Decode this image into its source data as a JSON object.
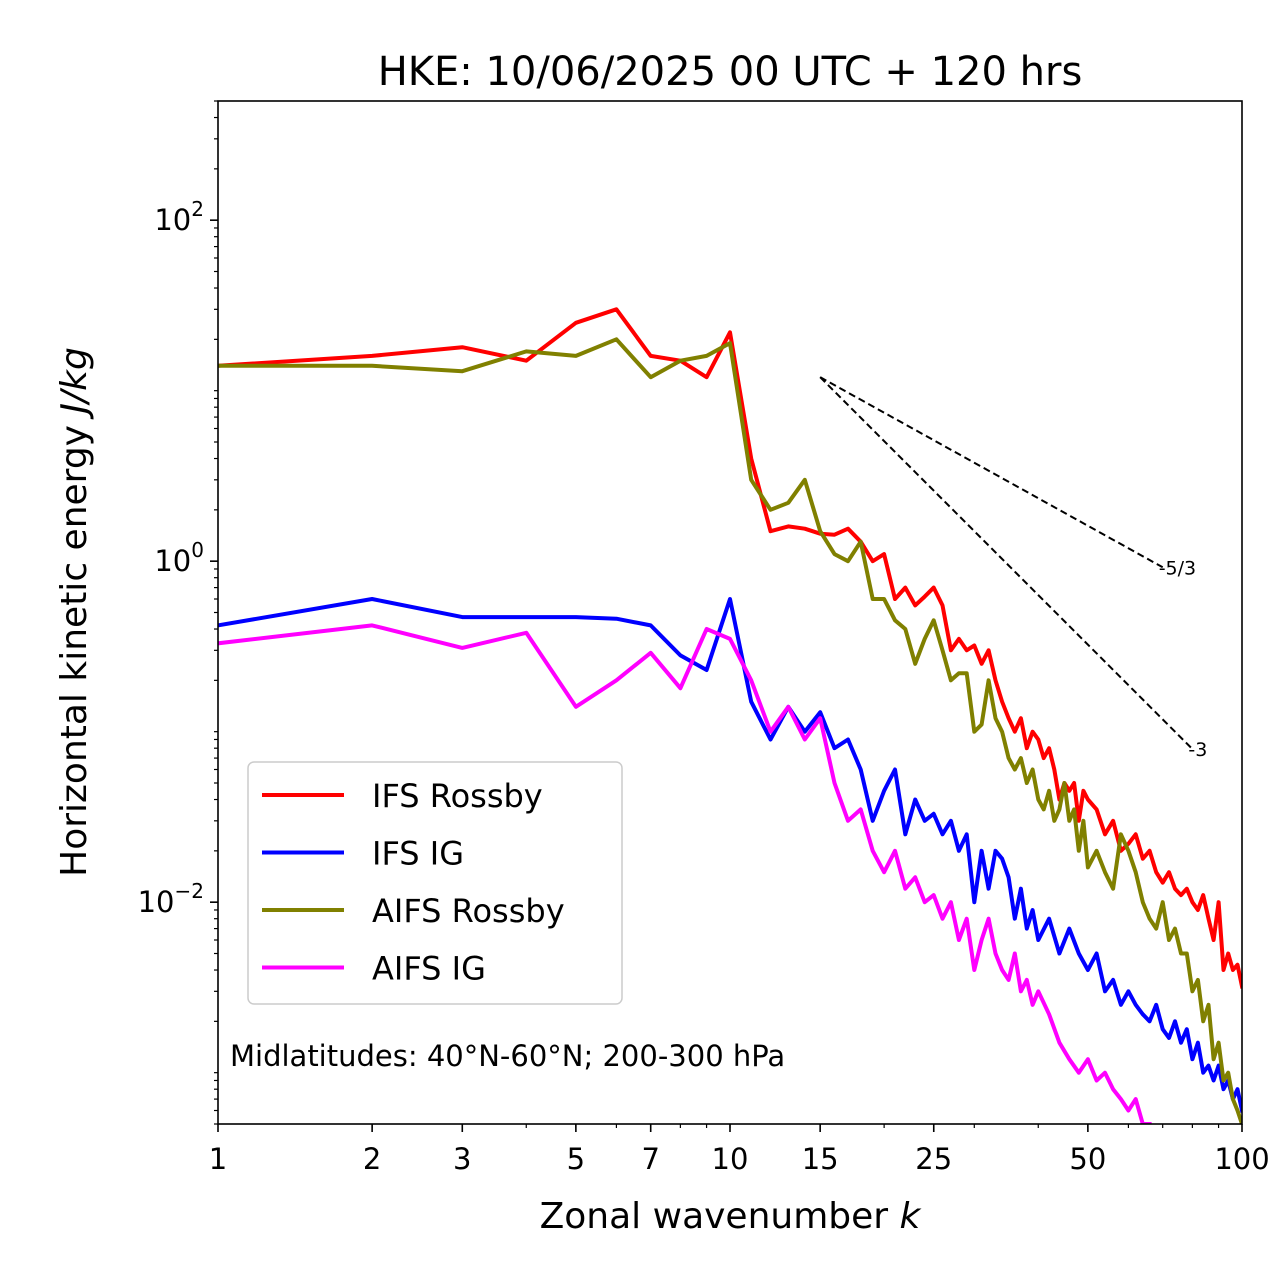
{
  "chart_data": {
    "type": "line",
    "title": "HKE: 10/06/2025 00 UTC + 120 hrs",
    "xlabel": "Zonal wavenumber ",
    "xlabel_italic": "k",
    "ylabel": "Horizontal kinetic energy ",
    "ylabel_italic": "J/kg",
    "xscale": "log",
    "yscale": "log",
    "xlim": [
      1,
      100
    ],
    "ylim": [
      0.0005,
      500
    ],
    "x_ticks": [
      1,
      2,
      3,
      5,
      7,
      10,
      15,
      25,
      50,
      100
    ],
    "x_tick_labels": [
      "1",
      "2",
      "3",
      "5",
      "7",
      "10",
      "15",
      "25",
      "50",
      "100"
    ],
    "y_ticks": [
      0.01,
      1,
      100
    ],
    "y_tick_labels": [
      {
        "base": "10",
        "exp": "−2"
      },
      {
        "base": "10",
        "exp": "0"
      },
      {
        "base": "10",
        "exp": "2"
      }
    ],
    "annotation": "Midlatitudes: 40°N-60°N; 200-300 hPa",
    "legend_position": "lower-left",
    "reference_lines": [
      {
        "label": "-5/3",
        "slope": -1.6667,
        "x_start": 15,
        "y_start": 12,
        "x_end": 70
      },
      {
        "label": "-3",
        "slope": -3,
        "x_start": 15,
        "y_start": 12,
        "x_end": 80
      }
    ],
    "series": [
      {
        "name": "IFS Rossby",
        "color": "#ff0000",
        "values": [
          [
            1,
            14
          ],
          [
            2,
            16
          ],
          [
            3,
            18
          ],
          [
            4,
            15
          ],
          [
            5,
            25
          ],
          [
            6,
            30
          ],
          [
            7,
            16
          ],
          [
            8,
            15
          ],
          [
            9,
            12
          ],
          [
            10,
            22
          ],
          [
            11,
            4
          ],
          [
            12,
            1.5
          ],
          [
            13,
            1.6
          ],
          [
            14,
            1.55
          ],
          [
            15,
            1.45
          ],
          [
            16,
            1.43
          ],
          [
            17,
            1.55
          ],
          [
            18,
            1.3
          ],
          [
            19,
            1.0
          ],
          [
            20,
            1.1
          ],
          [
            21,
            0.6
          ],
          [
            22,
            0.7
          ],
          [
            23,
            0.55
          ],
          [
            24,
            0.62
          ],
          [
            25,
            0.7
          ],
          [
            26,
            0.55
          ],
          [
            27,
            0.3
          ],
          [
            28,
            0.35
          ],
          [
            29,
            0.3
          ],
          [
            30,
            0.32
          ],
          [
            31,
            0.25
          ],
          [
            32,
            0.3
          ],
          [
            33,
            0.2
          ],
          [
            34,
            0.15
          ],
          [
            35,
            0.12
          ],
          [
            36,
            0.1
          ],
          [
            37,
            0.12
          ],
          [
            38,
            0.08
          ],
          [
            39,
            0.1
          ],
          [
            40,
            0.09
          ],
          [
            41,
            0.07
          ],
          [
            42,
            0.08
          ],
          [
            43,
            0.06
          ],
          [
            44,
            0.04
          ],
          [
            45,
            0.05
          ],
          [
            46,
            0.045
          ],
          [
            47,
            0.05
          ],
          [
            48,
            0.03
          ],
          [
            49,
            0.045
          ],
          [
            50,
            0.04
          ],
          [
            52,
            0.035
          ],
          [
            54,
            0.025
          ],
          [
            56,
            0.03
          ],
          [
            58,
            0.02
          ],
          [
            60,
            0.022
          ],
          [
            62,
            0.025
          ],
          [
            64,
            0.018
          ],
          [
            66,
            0.02
          ],
          [
            68,
            0.015
          ],
          [
            70,
            0.013
          ],
          [
            72,
            0.015
          ],
          [
            74,
            0.012
          ],
          [
            76,
            0.011
          ],
          [
            78,
            0.012
          ],
          [
            80,
            0.01
          ],
          [
            82,
            0.009
          ],
          [
            84,
            0.011
          ],
          [
            86,
            0.008
          ],
          [
            88,
            0.006
          ],
          [
            90,
            0.01
          ],
          [
            92,
            0.004
          ],
          [
            94,
            0.005
          ],
          [
            96,
            0.004
          ],
          [
            98,
            0.0043
          ],
          [
            100,
            0.0032
          ]
        ]
      },
      {
        "name": "IFS IG",
        "color": "#0000ff",
        "values": [
          [
            1,
            0.42
          ],
          [
            2,
            0.6
          ],
          [
            3,
            0.47
          ],
          [
            4,
            0.47
          ],
          [
            5,
            0.47
          ],
          [
            6,
            0.46
          ],
          [
            7,
            0.42
          ],
          [
            8,
            0.28
          ],
          [
            9,
            0.23
          ],
          [
            10,
            0.6
          ],
          [
            11,
            0.15
          ],
          [
            12,
            0.09
          ],
          [
            13,
            0.14
          ],
          [
            14,
            0.1
          ],
          [
            15,
            0.13
          ],
          [
            16,
            0.08
          ],
          [
            17,
            0.09
          ],
          [
            18,
            0.06
          ],
          [
            19,
            0.03
          ],
          [
            20,
            0.045
          ],
          [
            21,
            0.06
          ],
          [
            22,
            0.025
          ],
          [
            23,
            0.04
          ],
          [
            24,
            0.03
          ],
          [
            25,
            0.033
          ],
          [
            26,
            0.025
          ],
          [
            27,
            0.03
          ],
          [
            28,
            0.02
          ],
          [
            29,
            0.025
          ],
          [
            30,
            0.01
          ],
          [
            31,
            0.02
          ],
          [
            32,
            0.012
          ],
          [
            33,
            0.02
          ],
          [
            34,
            0.018
          ],
          [
            35,
            0.014
          ],
          [
            36,
            0.008
          ],
          [
            37,
            0.012
          ],
          [
            38,
            0.007
          ],
          [
            39,
            0.009
          ],
          [
            40,
            0.006
          ],
          [
            42,
            0.008
          ],
          [
            44,
            0.005
          ],
          [
            46,
            0.007
          ],
          [
            48,
            0.005
          ],
          [
            50,
            0.004
          ],
          [
            52,
            0.005
          ],
          [
            54,
            0.003
          ],
          [
            56,
            0.0035
          ],
          [
            58,
            0.0025
          ],
          [
            60,
            0.003
          ],
          [
            62,
            0.0025
          ],
          [
            64,
            0.0022
          ],
          [
            66,
            0.002
          ],
          [
            68,
            0.0025
          ],
          [
            70,
            0.0018
          ],
          [
            72,
            0.0016
          ],
          [
            74,
            0.002
          ],
          [
            76,
            0.0015
          ],
          [
            78,
            0.0018
          ],
          [
            80,
            0.0012
          ],
          [
            82,
            0.0015
          ],
          [
            84,
            0.001
          ],
          [
            86,
            0.0011
          ],
          [
            88,
            0.0009
          ],
          [
            90,
            0.0011
          ],
          [
            92,
            0.0008
          ],
          [
            94,
            0.0009
          ],
          [
            96,
            0.0007
          ],
          [
            98,
            0.0008
          ],
          [
            100,
            0.0006
          ]
        ]
      },
      {
        "name": "AIFS Rossby",
        "color": "#808000",
        "values": [
          [
            1,
            14
          ],
          [
            2,
            14
          ],
          [
            3,
            13
          ],
          [
            4,
            17
          ],
          [
            5,
            16
          ],
          [
            6,
            20
          ],
          [
            7,
            12
          ],
          [
            8,
            15
          ],
          [
            9,
            16
          ],
          [
            10,
            19
          ],
          [
            11,
            3.0
          ],
          [
            12,
            2.0
          ],
          [
            13,
            2.2
          ],
          [
            14,
            3.0
          ],
          [
            15,
            1.5
          ],
          [
            16,
            1.1
          ],
          [
            17,
            1.0
          ],
          [
            18,
            1.3
          ],
          [
            19,
            0.6
          ],
          [
            20,
            0.6
          ],
          [
            21,
            0.45
          ],
          [
            22,
            0.4
          ],
          [
            23,
            0.25
          ],
          [
            24,
            0.35
          ],
          [
            25,
            0.45
          ],
          [
            26,
            0.3
          ],
          [
            27,
            0.2
          ],
          [
            28,
            0.22
          ],
          [
            29,
            0.22
          ],
          [
            30,
            0.1
          ],
          [
            31,
            0.11
          ],
          [
            32,
            0.2
          ],
          [
            33,
            0.12
          ],
          [
            34,
            0.1
          ],
          [
            35,
            0.07
          ],
          [
            36,
            0.06
          ],
          [
            37,
            0.07
          ],
          [
            38,
            0.05
          ],
          [
            39,
            0.06
          ],
          [
            40,
            0.04
          ],
          [
            41,
            0.035
          ],
          [
            42,
            0.045
          ],
          [
            43,
            0.03
          ],
          [
            44,
            0.035
          ],
          [
            45,
            0.05
          ],
          [
            46,
            0.03
          ],
          [
            47,
            0.035
          ],
          [
            48,
            0.02
          ],
          [
            49,
            0.03
          ],
          [
            50,
            0.016
          ],
          [
            52,
            0.02
          ],
          [
            54,
            0.015
          ],
          [
            56,
            0.012
          ],
          [
            58,
            0.025
          ],
          [
            60,
            0.02
          ],
          [
            62,
            0.015
          ],
          [
            64,
            0.01
          ],
          [
            66,
            0.008
          ],
          [
            68,
            0.007
          ],
          [
            70,
            0.01
          ],
          [
            72,
            0.006
          ],
          [
            74,
            0.007
          ],
          [
            76,
            0.005
          ],
          [
            78,
            0.005
          ],
          [
            80,
            0.003
          ],
          [
            82,
            0.0035
          ],
          [
            84,
            0.002
          ],
          [
            86,
            0.0025
          ],
          [
            88,
            0.0012
          ],
          [
            90,
            0.0015
          ],
          [
            92,
            0.0009
          ],
          [
            94,
            0.001
          ],
          [
            96,
            0.0007
          ],
          [
            98,
            0.0006
          ],
          [
            100,
            0.0005
          ]
        ]
      },
      {
        "name": "AIFS IG",
        "color": "#ff00ff",
        "values": [
          [
            1,
            0.33
          ],
          [
            2,
            0.42
          ],
          [
            3,
            0.31
          ],
          [
            4,
            0.38
          ],
          [
            5,
            0.14
          ],
          [
            6,
            0.2
          ],
          [
            7,
            0.29
          ],
          [
            8,
            0.18
          ],
          [
            9,
            0.4
          ],
          [
            10,
            0.35
          ],
          [
            11,
            0.2
          ],
          [
            12,
            0.1
          ],
          [
            13,
            0.14
          ],
          [
            14,
            0.09
          ],
          [
            15,
            0.12
          ],
          [
            16,
            0.05
          ],
          [
            17,
            0.03
          ],
          [
            18,
            0.035
          ],
          [
            19,
            0.02
          ],
          [
            20,
            0.015
          ],
          [
            21,
            0.02
          ],
          [
            22,
            0.012
          ],
          [
            23,
            0.014
          ],
          [
            24,
            0.01
          ],
          [
            25,
            0.011
          ],
          [
            26,
            0.008
          ],
          [
            27,
            0.01
          ],
          [
            28,
            0.006
          ],
          [
            29,
            0.008
          ],
          [
            30,
            0.004
          ],
          [
            31,
            0.006
          ],
          [
            32,
            0.008
          ],
          [
            33,
            0.005
          ],
          [
            34,
            0.004
          ],
          [
            35,
            0.0035
          ],
          [
            36,
            0.005
          ],
          [
            37,
            0.003
          ],
          [
            38,
            0.0035
          ],
          [
            39,
            0.0025
          ],
          [
            40,
            0.003
          ],
          [
            42,
            0.0022
          ],
          [
            44,
            0.0015
          ],
          [
            46,
            0.0012
          ],
          [
            48,
            0.001
          ],
          [
            50,
            0.0012
          ],
          [
            52,
            0.0009
          ],
          [
            54,
            0.001
          ],
          [
            56,
            0.0008
          ],
          [
            58,
            0.0007
          ],
          [
            60,
            0.0006
          ],
          [
            62,
            0.0007
          ],
          [
            64,
            0.0005
          ],
          [
            66,
            0.0005
          ]
        ]
      }
    ]
  }
}
